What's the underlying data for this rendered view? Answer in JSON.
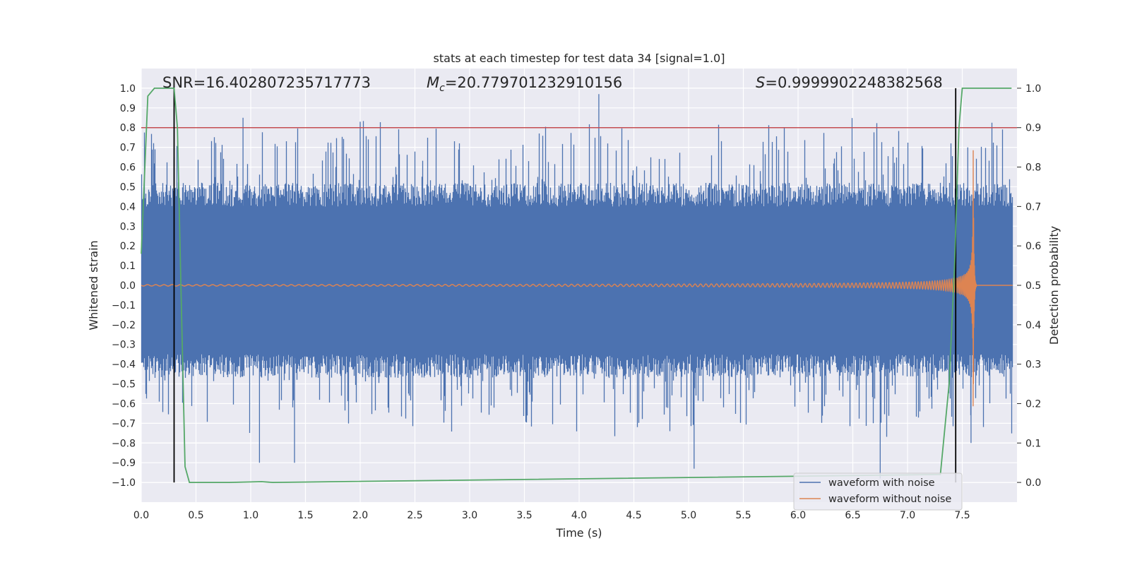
{
  "chart_data": {
    "type": "line",
    "title": "stats at each timestep for test data 34 [signal=1.0]",
    "xlabel": "Time (s)",
    "ylabel": "Whitened strain",
    "y2label": "Detection probability",
    "xlim": [
      0.0,
      8.0
    ],
    "ylim": [
      -1.1,
      1.1
    ],
    "y2lim": [
      -0.05,
      1.05
    ],
    "x_ticks": [
      "0.0",
      "0.5",
      "1.0",
      "1.5",
      "2.0",
      "2.5",
      "3.0",
      "3.5",
      "4.0",
      "4.5",
      "5.0",
      "5.5",
      "6.0",
      "6.5",
      "7.0",
      "7.5"
    ],
    "y_ticks": [
      "1.0",
      "0.9",
      "0.8",
      "0.7",
      "0.6",
      "0.5",
      "0.4",
      "0.3",
      "0.2",
      "0.1",
      "0.0",
      "−0.1",
      "−0.2",
      "−0.3",
      "−0.4",
      "−0.5",
      "−0.6",
      "−0.7",
      "−0.8",
      "−0.9",
      "−1.0"
    ],
    "y2_ticks": [
      "1.0",
      "0.9",
      "0.8",
      "0.7",
      "0.6",
      "0.5",
      "0.4",
      "0.3",
      "0.2",
      "0.1",
      "0.0"
    ],
    "annotations": {
      "snr": "SNR=16.402807235717773",
      "mc_symbol": "M",
      "mc_sub": "c",
      "mc_value": "=20.779701232910156",
      "s_symbol": "S",
      "s_value": "=0.9999902248382568"
    },
    "threshold": 0.9,
    "markers_x": [
      0.3,
      7.44
    ],
    "marker_range": [
      0.0,
      1.0
    ],
    "series": [
      {
        "name": "waveform with noise",
        "color": "#4c72b0",
        "axis": "left",
        "noise_band": [
          -0.35,
          0.4
        ],
        "peak_max": 0.97,
        "peak_min": -0.98
      },
      {
        "name": "waveform without noise",
        "color": "#dd8452",
        "axis": "left",
        "merger_time": 7.6,
        "peak_amplitude": 0.69
      },
      {
        "name": "detection probability",
        "color": "#55a868",
        "axis": "right",
        "x": [
          0.0,
          0.06,
          0.12,
          0.3,
          0.33,
          0.37,
          0.4,
          0.44,
          0.8,
          1.1,
          1.2,
          7.3,
          7.38,
          7.43,
          7.47,
          7.5,
          7.55,
          7.95
        ],
        "values": [
          0.58,
          0.98,
          1.0,
          1.0,
          0.9,
          0.4,
          0.04,
          0.0,
          0.0,
          0.002,
          0.0,
          0.02,
          0.25,
          0.55,
          0.9,
          1.0,
          1.0,
          1.0
        ]
      },
      {
        "name": "threshold",
        "color": "#c44e52",
        "axis": "right"
      }
    ],
    "legend": [
      "waveform with noise",
      "waveform without noise"
    ],
    "legend_position": "lower-right",
    "grid": true
  }
}
